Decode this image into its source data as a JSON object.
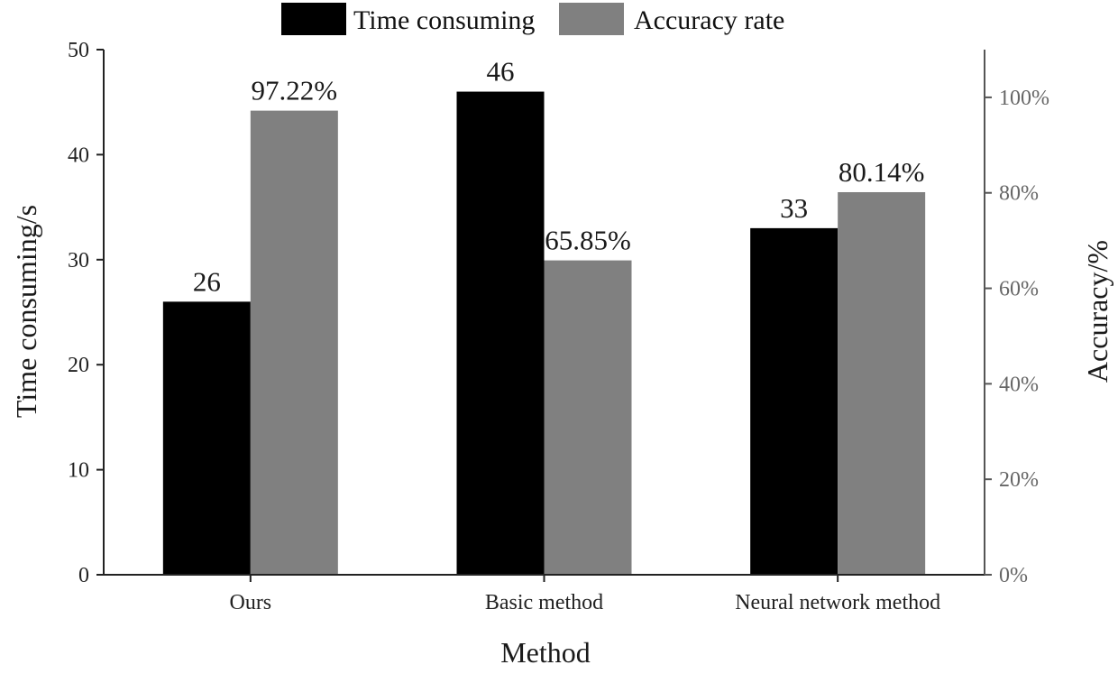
{
  "chart_data": {
    "type": "bar",
    "xlabel": "Method",
    "ylabel_left": "Time consuming/s",
    "ylabel_right": "Accuracy/%",
    "categories": [
      "Ours",
      "Basic method",
      "Neural network method"
    ],
    "series": [
      {
        "name": "Time consuming",
        "axis": "left",
        "color": "#000000",
        "values": [
          26,
          46,
          33
        ],
        "labels": [
          "26",
          "46",
          "33"
        ]
      },
      {
        "name": "Accuracy rate",
        "axis": "right",
        "color": "#808080",
        "values": [
          97.22,
          65.85,
          80.14
        ],
        "labels": [
          "97.22%",
          "65.85%",
          "80.14%"
        ]
      }
    ],
    "ylim_left": [
      0,
      50
    ],
    "ylim_right": [
      0,
      110
    ],
    "yticks_left": [
      0,
      10,
      20,
      30,
      40,
      50
    ],
    "yticks_right": [
      0,
      20,
      40,
      60,
      80,
      100
    ],
    "yticks_right_labels": [
      "0%",
      "20%",
      "40%",
      "60%",
      "80%",
      "100%"
    ],
    "legend_position": "top-center",
    "grid": false
  }
}
